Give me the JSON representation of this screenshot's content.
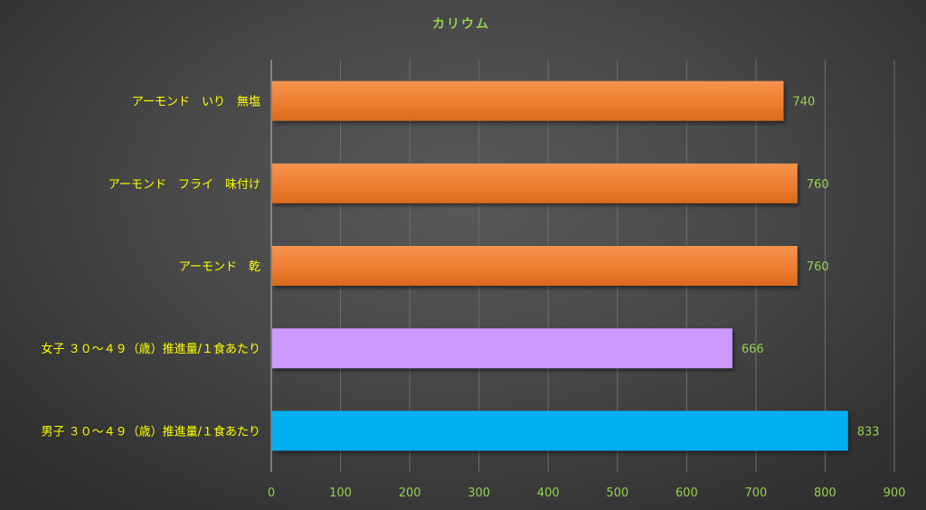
{
  "chart_data": {
    "type": "bar",
    "orientation": "horizontal",
    "title": "カリウム",
    "categories": [
      "アーモンド　いり　無塩",
      "アーモンド　フライ　味付け",
      "アーモンド　乾",
      "女子 ３０～４９（歳）推進量/１食あたり",
      "男子 ３０～４９（歳）推進量/１食あたり"
    ],
    "values": [
      740,
      760,
      760,
      666,
      833
    ],
    "bar_colors": [
      "#ED7D31",
      "#ED7D31",
      "#ED7D31",
      "#CC99FF",
      "#00B0F0"
    ],
    "data_labels": [
      "740",
      "760",
      "760",
      "666",
      "833"
    ],
    "xlim": [
      0,
      900
    ],
    "xticks": [
      0,
      100,
      200,
      300,
      400,
      500,
      600,
      700,
      800,
      900
    ],
    "xtick_labels": [
      "0",
      "100",
      "200",
      "300",
      "400",
      "500",
      "600",
      "700",
      "800",
      "900"
    ],
    "grid": true,
    "legend": "none",
    "text_colors": {
      "title": "#92D050",
      "category_labels": "#FFFF00",
      "tick_labels": "#92D050",
      "data_labels": "#92D050"
    },
    "background": "#404040"
  }
}
